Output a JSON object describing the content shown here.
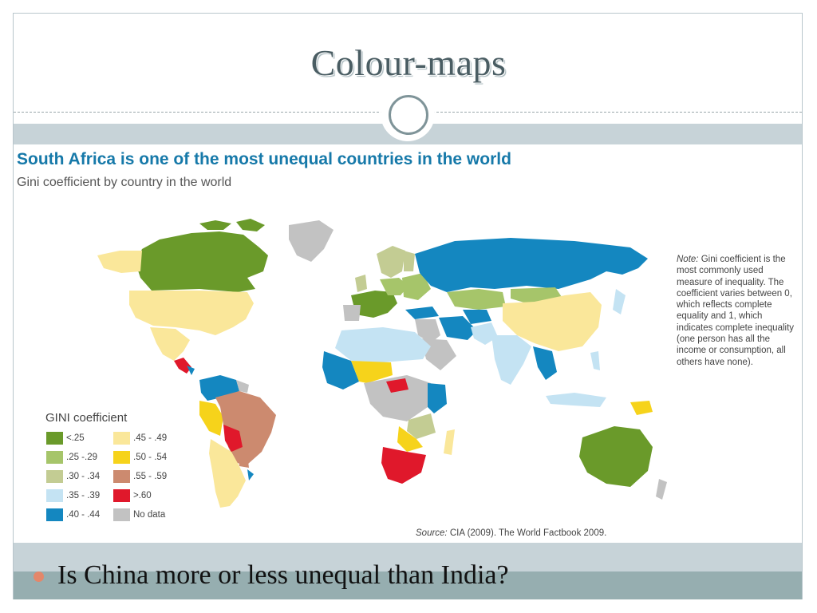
{
  "slide": {
    "title": "Colour-maps",
    "bullet": "Is China more or less unequal than India?"
  },
  "map": {
    "title": "South Africa is one of the most unequal countries in the world",
    "subtitle": "Gini coefficient by country in the world",
    "note_label": "Note:",
    "note_text": "Gini coefficient is the most commonly used measure of inequality. The coefficient varies between 0, which reflects complete equality and 1, which indicates complete inequality (one person has all the income or consumption, all others have none).",
    "source_label": "Source:",
    "source_text": "CIA (2009). The World Factbook 2009.",
    "legend_title": "GINI coefficient",
    "legend": [
      {
        "label": "<.25",
        "color": "#6a9a2a"
      },
      {
        "label": ".25 -.29",
        "color": "#a6c56a"
      },
      {
        "label": ".30 - .34",
        "color": "#c3cc93"
      },
      {
        "label": ".35 - .39",
        "color": "#c4e3f3"
      },
      {
        "label": ".40 - .44",
        "color": "#1487c0"
      },
      {
        "label": ".45 - .49",
        "color": "#fae79a"
      },
      {
        "label": ".50 - .54",
        "color": "#f6d31b"
      },
      {
        "label": ".55 - .59",
        "color": "#cc8a6f"
      },
      {
        "label": ">.60",
        "color": "#e0182b"
      },
      {
        "label": "No data",
        "color": "#c2c2c2"
      }
    ]
  }
}
